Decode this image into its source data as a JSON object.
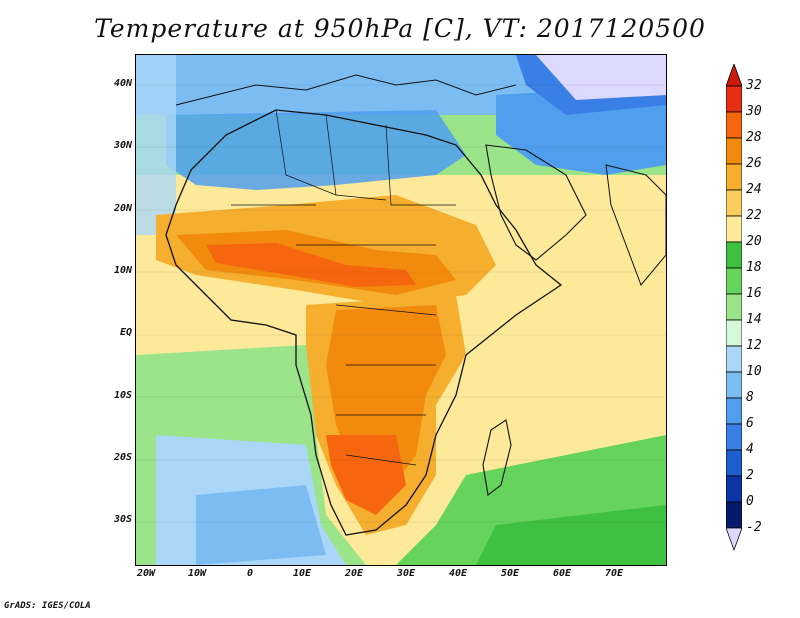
{
  "title": "Temperature at 950hPa [C], VT: 2017120500",
  "credit": "GrADS: IGES/COLA",
  "lat_labels": [
    "40N",
    "30N",
    "20N",
    "10N",
    "EQ",
    "10S",
    "20S",
    "30S"
  ],
  "lon_labels": [
    "20W",
    "10W",
    "0",
    "10E",
    "20E",
    "30E",
    "40E",
    "50E",
    "60E",
    "70E"
  ],
  "colorbar": {
    "labels": [
      "32",
      "30",
      "28",
      "26",
      "24",
      "22",
      "20",
      "18",
      "16",
      "14",
      "12",
      "10",
      "8",
      "6",
      "4",
      "2",
      "0",
      "-2"
    ],
    "colors": [
      "#e52f14",
      "#f5660f",
      "#f28b0d",
      "#f5ae2e",
      "#f9cd5e",
      "#fde99a",
      "#3ec040",
      "#66d45c",
      "#9be48a",
      "#d6f8da",
      "#aad7f8",
      "#7bbdf3",
      "#4f9fee",
      "#3a7fe5",
      "#1f5ccc",
      "#0c36a5",
      "#06196b"
    ],
    "top_arrow_color": "#cc1a0d",
    "bottom_arrow_color": "#ddd8ff"
  }
}
